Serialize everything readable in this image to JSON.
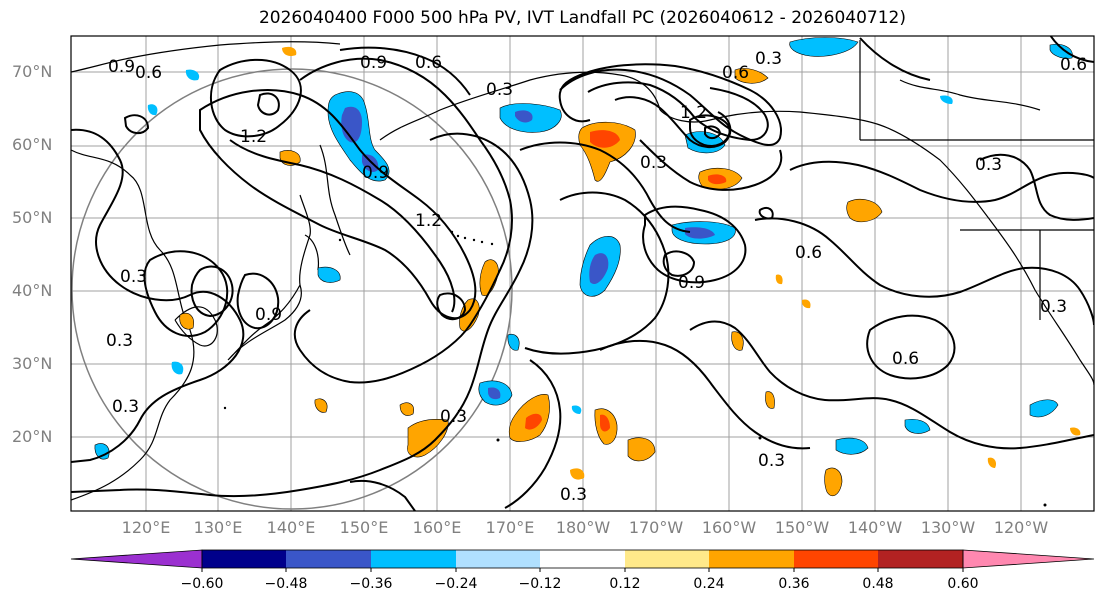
{
  "title": "2026040400 F000 500 hPa PV, IVT Landfall PC (2026040612 - 2026040712)",
  "lat_labels": [
    "70°N",
    "60°N",
    "50°N",
    "40°N",
    "30°N",
    "20°N"
  ],
  "lon_labels": [
    "120°E",
    "130°E",
    "140°E",
    "150°E",
    "160°E",
    "170°E",
    "180°W",
    "170°W",
    "160°W",
    "150°W",
    "140°W",
    "130°W",
    "120°W"
  ],
  "contour_labels": [
    "0.9",
    "0.6",
    "0.3",
    "1.2",
    "0.9",
    "0.6",
    "0.3",
    "0.9",
    "0.3",
    "0.9",
    "0.6",
    "1.2",
    "0.3",
    "0.6",
    "0.3",
    "0.3",
    "0.3",
    "0.6",
    "0.3",
    "0.3",
    "0.9",
    "0.6",
    "0.3",
    "0.3",
    "1.2"
  ],
  "colorbar": {
    "ticks": [
      "−0.60",
      "−0.48",
      "−0.36",
      "−0.24",
      "−0.12",
      "0.12",
      "0.24",
      "0.36",
      "0.48",
      "0.60"
    ],
    "colors": [
      "#9b30d0",
      "#00008b",
      "#3a56c8",
      "#00bfff",
      "#b0e0ff",
      "#ffffff",
      "#ffe98a",
      "#ffa500",
      "#ff4500",
      "#b22222",
      "#ff88b0"
    ]
  }
}
